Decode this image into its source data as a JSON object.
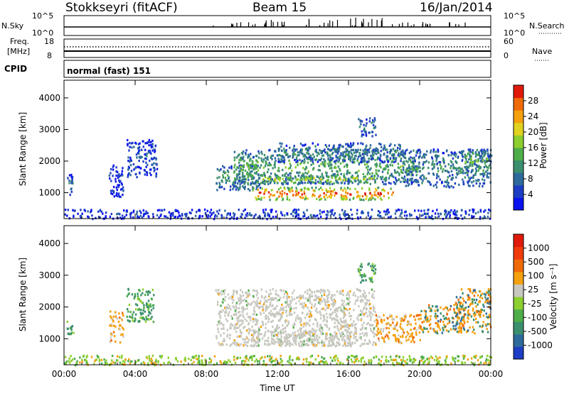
{
  "header": {
    "station": "Stokkseyri (fitACF)",
    "beam": "Beam 15",
    "date": "16/Jan/2014"
  },
  "strip_panels": {
    "nsky_label": "N.Sky",
    "nsky_ticks": [
      "10^5",
      "10^0"
    ],
    "nsearch_label": "N.Search",
    "nsearch_ticks": [
      "10^5",
      "10^0"
    ],
    "freq_label": "Freq.",
    "freq_unit": "[MHz]",
    "freq_ticks": [
      "18",
      "8"
    ],
    "nave_label": "Nave",
    "nave_ticks": [
      "60",
      "0"
    ],
    "cpid_label": "CPID",
    "cpid_value": "normal (fast) 151"
  },
  "colors": {
    "frame": "#000000",
    "grey_scatter": "#c8c8c0"
  },
  "chart_data": [
    {
      "type": "heatmap",
      "name": "power",
      "ylabel": "Slant Range [km]",
      "xlabel": "",
      "xticks": [
        "00:00",
        "04:00",
        "08:00",
        "12:00",
        "16:00",
        "20:00",
        "00:00"
      ],
      "xlim_hours": [
        0,
        24
      ],
      "yticks": [
        1000,
        2000,
        3000,
        4000
      ],
      "ylim": [
        180,
        4560
      ],
      "colorbar": {
        "label": "Power [dB]",
        "ticks": [
          "4",
          "8",
          "12",
          "16",
          "20",
          "24",
          "28"
        ],
        "colors": [
          "#0a12f0",
          "#1d3ec4",
          "#2e6a9c",
          "#3b8f6e",
          "#4fad4a",
          "#8ccf2e",
          "#e0d21e",
          "#f5a00e",
          "#f06a0a",
          "#e01a0a"
        ]
      },
      "regions": [
        {
          "t": [
            0.1,
            0.5
          ],
          "r": [
            950,
            1600
          ],
          "level": 0.25
        },
        {
          "t": [
            2.5,
            3.3
          ],
          "r": [
            900,
            1900
          ],
          "level": 0.15
        },
        {
          "t": [
            3.5,
            5.2
          ],
          "r": [
            1500,
            2700
          ],
          "level": 0.2
        },
        {
          "t": [
            0.0,
            8.0
          ],
          "r": [
            200,
            500
          ],
          "level": 0.15
        },
        {
          "t": [
            8.5,
            11.0
          ],
          "r": [
            1100,
            1900
          ],
          "level": 0.4
        },
        {
          "t": [
            9.5,
            20.0
          ],
          "r": [
            1300,
            2400
          ],
          "level": 0.45
        },
        {
          "t": [
            10.5,
            18.5
          ],
          "r": [
            800,
            1200
          ],
          "level": 0.95
        },
        {
          "t": [
            11.0,
            17.5
          ],
          "r": [
            1300,
            1600
          ],
          "level": 0.6
        },
        {
          "t": [
            12.0,
            19.0
          ],
          "r": [
            2000,
            2600
          ],
          "level": 0.35
        },
        {
          "t": [
            16.5,
            17.5
          ],
          "r": [
            2800,
            3400
          ],
          "level": 0.3
        },
        {
          "t": [
            19.0,
            24.0
          ],
          "r": [
            1200,
            2400
          ],
          "level": 0.35
        },
        {
          "t": [
            22.5,
            23.8
          ],
          "r": [
            1700,
            2400
          ],
          "level": 0.5
        },
        {
          "t": [
            8.0,
            24.0
          ],
          "r": [
            200,
            500
          ],
          "level": 0.2
        }
      ]
    },
    {
      "type": "heatmap",
      "name": "velocity",
      "ylabel": "Slant Range [km]",
      "xlabel": "Time UT",
      "xticks": [
        "00:00",
        "04:00",
        "08:00",
        "12:00",
        "16:00",
        "20:00",
        "00:00"
      ],
      "xlim_hours": [
        0,
        24
      ],
      "yticks": [
        1000,
        2000,
        3000,
        4000
      ],
      "ylim": [
        180,
        4560
      ],
      "colorbar": {
        "label": "Velocity [m s⁻¹]",
        "ticks": [
          "1000",
          "500",
          "100",
          "25",
          "-25",
          "-100",
          "-500",
          "-1000"
        ],
        "colors": [
          "#1d3ec4",
          "#2e6a9c",
          "#3b8f6e",
          "#4fad4a",
          "#8ccf2e",
          "#c8c8c0",
          "#f5a00e",
          "#f06a0a",
          "#f03a0a",
          "#e01a0a"
        ]
      },
      "regions": [
        {
          "t": [
            0.1,
            0.5
          ],
          "r": [
            1100,
            1600
          ],
          "cls": "neg_green"
        },
        {
          "t": [
            2.5,
            3.3
          ],
          "r": [
            900,
            1900
          ],
          "cls": "orange"
        },
        {
          "t": [
            3.5,
            5.0
          ],
          "r": [
            1500,
            2600
          ],
          "cls": "neg_green"
        },
        {
          "t": [
            8.5,
            17.5
          ],
          "r": [
            800,
            2600
          ],
          "cls": "grey"
        },
        {
          "t": [
            10.5,
            16.5
          ],
          "r": [
            800,
            1300
          ],
          "cls": "grey"
        },
        {
          "t": [
            16.5,
            17.5
          ],
          "r": [
            2800,
            3400
          ],
          "cls": "neg_green"
        },
        {
          "t": [
            17.5,
            20.0
          ],
          "r": [
            900,
            1800
          ],
          "cls": "orange"
        },
        {
          "t": [
            20.0,
            22.5
          ],
          "r": [
            1200,
            2100
          ],
          "cls": "mixed_orange_green"
        },
        {
          "t": [
            22.0,
            24.0
          ],
          "r": [
            1200,
            2600
          ],
          "cls": "mixed_orange_green"
        },
        {
          "t": [
            0.0,
            24.0
          ],
          "r": [
            200,
            500
          ],
          "cls": "low_green_orange"
        }
      ]
    }
  ]
}
